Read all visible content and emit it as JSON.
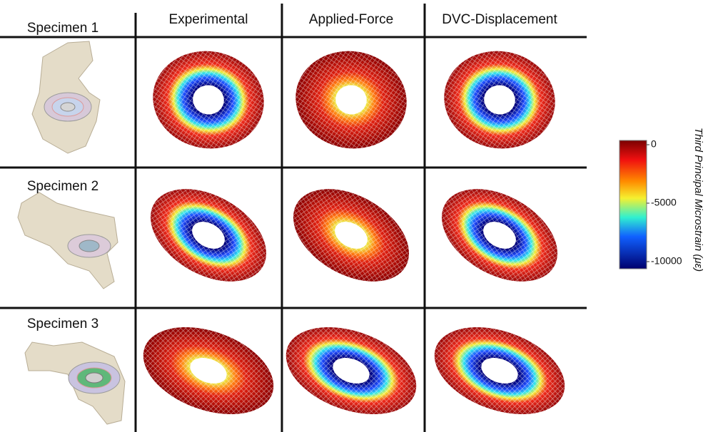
{
  "rows": [
    "Specimen 1",
    "Specimen 2",
    "Specimen 3"
  ],
  "columns": [
    "Experimental",
    "Applied-Force",
    "DVC-Displacement"
  ],
  "colorbar": {
    "label": "Third Principal Microstrain (με)",
    "ticks": [
      0,
      -5000,
      -10000
    ]
  }
}
